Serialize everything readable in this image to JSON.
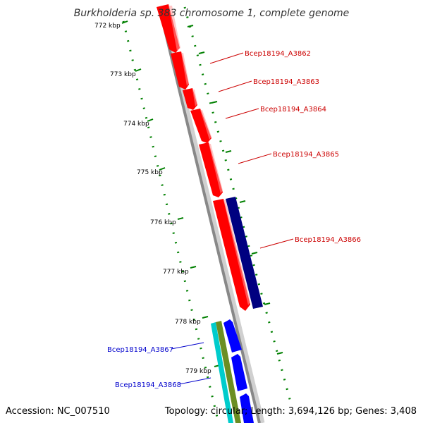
{
  "title": "Burkholderia sp. 383 chromosome 1, complete genome",
  "footer": {
    "accession": "Accession: NC_007510",
    "summary": "Topology: circular; Length: 3,694,126 bp; Genes: 3,408"
  },
  "ticks": [
    "772 kbp",
    "773 kbp",
    "774 kbp",
    "775 kbp",
    "776 kbp",
    "777 kbp",
    "778 kbp",
    "779 kbp"
  ],
  "genes": [
    {
      "label": "Bcep18194_A3862",
      "strand": "reverse",
      "color": "#ff0000"
    },
    {
      "label": "Bcep18194_A3863",
      "strand": "reverse",
      "color": "#ff0000"
    },
    {
      "label": "Bcep18194_A3864",
      "strand": "reverse",
      "color": "#ff0000"
    },
    {
      "label": "Bcep18194_A3865",
      "strand": "reverse",
      "color": "#ff0000"
    },
    {
      "label": "Bcep18194_A3866",
      "strand": "reverse",
      "color": "#ff0000"
    },
    {
      "label": "Bcep18194_A3867",
      "strand": "forward",
      "color": "#0000ff"
    },
    {
      "label": "Bcep18194_A3868",
      "strand": "forward",
      "color": "#0000ff"
    }
  ],
  "colors": {
    "reverse_cds": "#ff0000",
    "forward_cds": "#0000ff",
    "reverse_feature": "#000080",
    "forward_feature_cyan": "#00cccc",
    "forward_feature_olive": "#6b8e23",
    "backbone": "#888888",
    "tick_marks": "#008000",
    "reverse_label": "#cc0000",
    "forward_label": "#0000cc"
  }
}
